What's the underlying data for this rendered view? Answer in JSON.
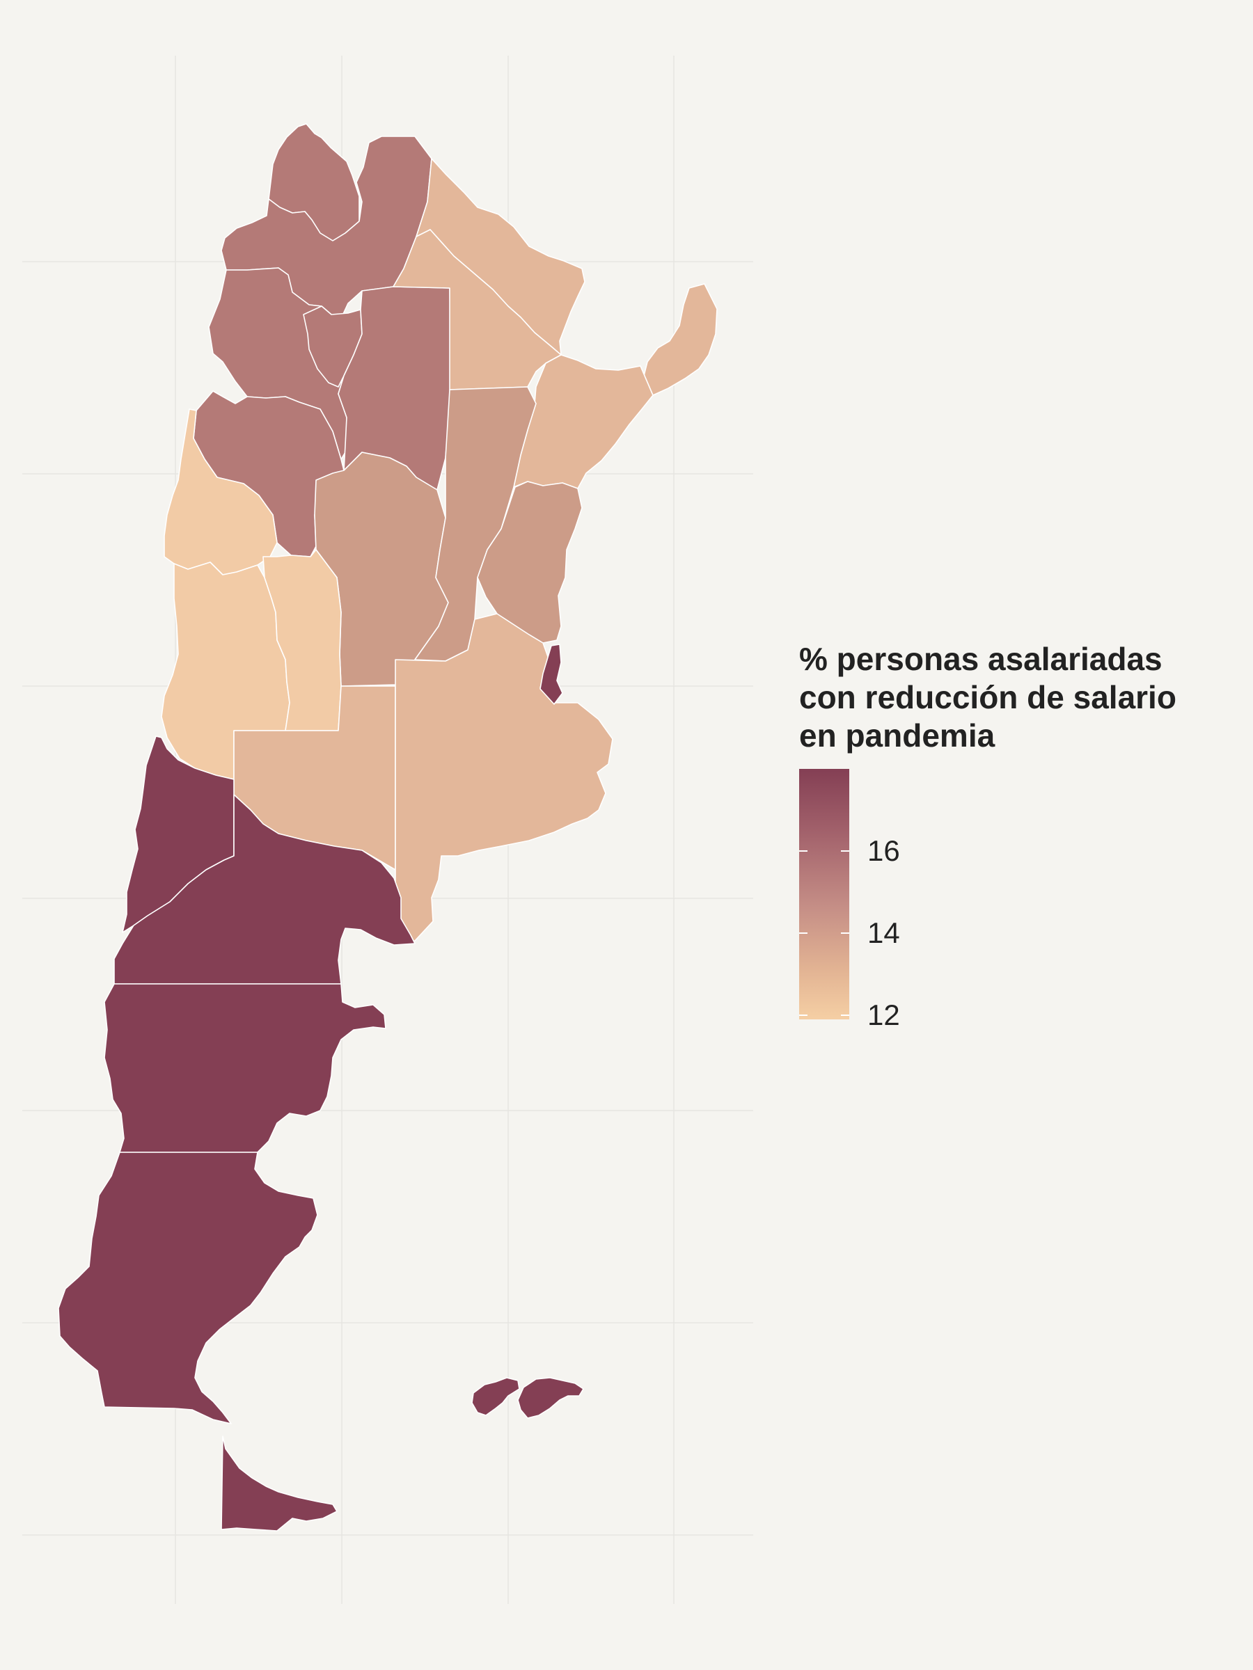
{
  "legend": {
    "title": "% personas asalariadas\ncon reducción de salario\nen pandemia",
    "range": [
      11.9,
      18.0
    ],
    "ticks": [
      {
        "value": 12,
        "label": "12"
      },
      {
        "value": 14,
        "label": "14"
      },
      {
        "value": 16,
        "label": "16"
      }
    ],
    "colors": [
      "#f5cfa4",
      "#e2b393",
      "#c58e86",
      "#a2616b",
      "#843f54"
    ]
  },
  "regions": [
    {
      "name": "Jujuy",
      "color": "#b47a77"
    },
    {
      "name": "Salta",
      "color": "#b47a77"
    },
    {
      "name": "Formosa",
      "color": "#e3b79a"
    },
    {
      "name": "Misiones",
      "color": "#e3b79a"
    },
    {
      "name": "Catamarca",
      "color": "#b47a77"
    },
    {
      "name": "Tucumán",
      "color": "#b47a77"
    },
    {
      "name": "Santiago del Estero",
      "color": "#b47a77"
    },
    {
      "name": "Chaco",
      "color": "#e3b79a"
    },
    {
      "name": "Corrientes",
      "color": "#e3b79a"
    },
    {
      "name": "La Rioja",
      "color": "#b47a77"
    },
    {
      "name": "San Juan",
      "color": "#f2cba6"
    },
    {
      "name": "Córdoba",
      "color": "#cc9c88"
    },
    {
      "name": "Santa Fe",
      "color": "#cc9c88"
    },
    {
      "name": "Entre Ríos",
      "color": "#cc9c88"
    },
    {
      "name": "Mendoza",
      "color": "#f2cba6"
    },
    {
      "name": "San Luis",
      "color": "#f2cba6"
    },
    {
      "name": "La Pampa",
      "color": "#e3b79a"
    },
    {
      "name": "Buenos Aires",
      "color": "#e3b79a"
    },
    {
      "name": "Ciudad de Buenos Aires",
      "color": "#843f54"
    },
    {
      "name": "Neuquén",
      "color": "#843f54"
    },
    {
      "name": "Río Negro",
      "color": "#843f54"
    },
    {
      "name": "Chubut",
      "color": "#843f54"
    },
    {
      "name": "Santa Cruz",
      "color": "#843f54"
    },
    {
      "name": "Tierra del Fuego",
      "color": "#843f54"
    },
    {
      "name": "Islas Malvinas",
      "color": "#843f54"
    }
  ]
}
